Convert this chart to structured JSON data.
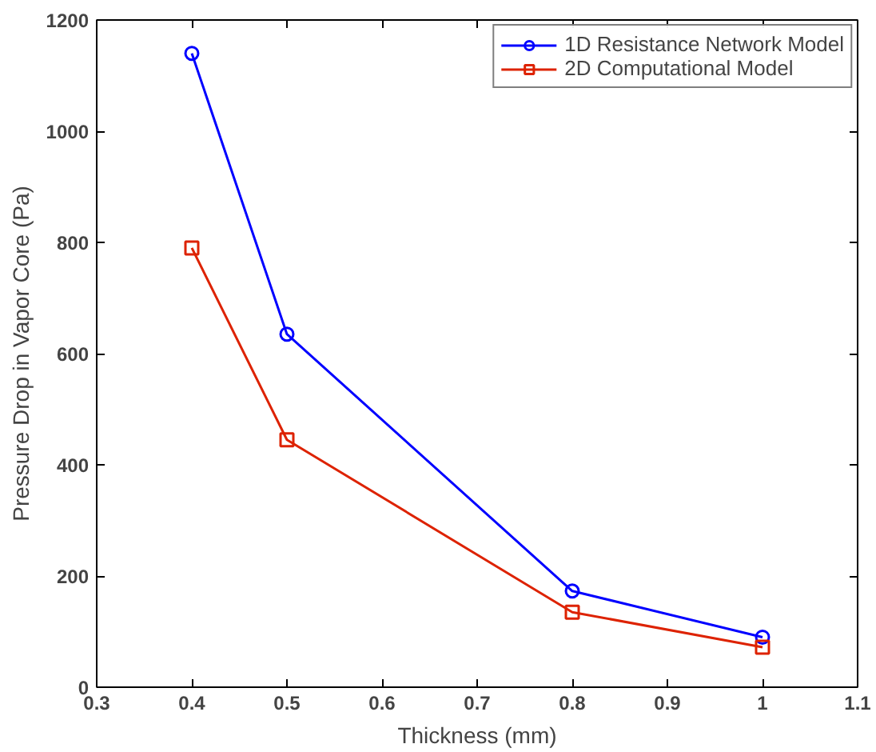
{
  "chart_data": {
    "type": "line",
    "xlabel": "Thickness (mm)",
    "ylabel": "Pressure Drop in Vapor Core (Pa)",
    "x": [
      0.4,
      0.5,
      0.8,
      1.0
    ],
    "series": [
      {
        "name": "1D Resistance Network Model",
        "color": "#0000ff",
        "marker": "circle",
        "values": [
          1140,
          635,
          173,
          90
        ]
      },
      {
        "name": "2D Computational Model",
        "color": "#dd2200",
        "marker": "square",
        "values": [
          790,
          445,
          135,
          72
        ]
      }
    ],
    "xlim": [
      0.3,
      1.1
    ],
    "xticks": [
      0.3,
      0.4,
      0.5,
      0.6,
      0.7,
      0.8,
      0.9,
      1,
      1.1
    ],
    "ylim": [
      0,
      1200
    ],
    "yticks": [
      0,
      200,
      400,
      600,
      800,
      1000,
      1200
    ],
    "grid": false,
    "legend": "top right",
    "line_style": "solid"
  }
}
